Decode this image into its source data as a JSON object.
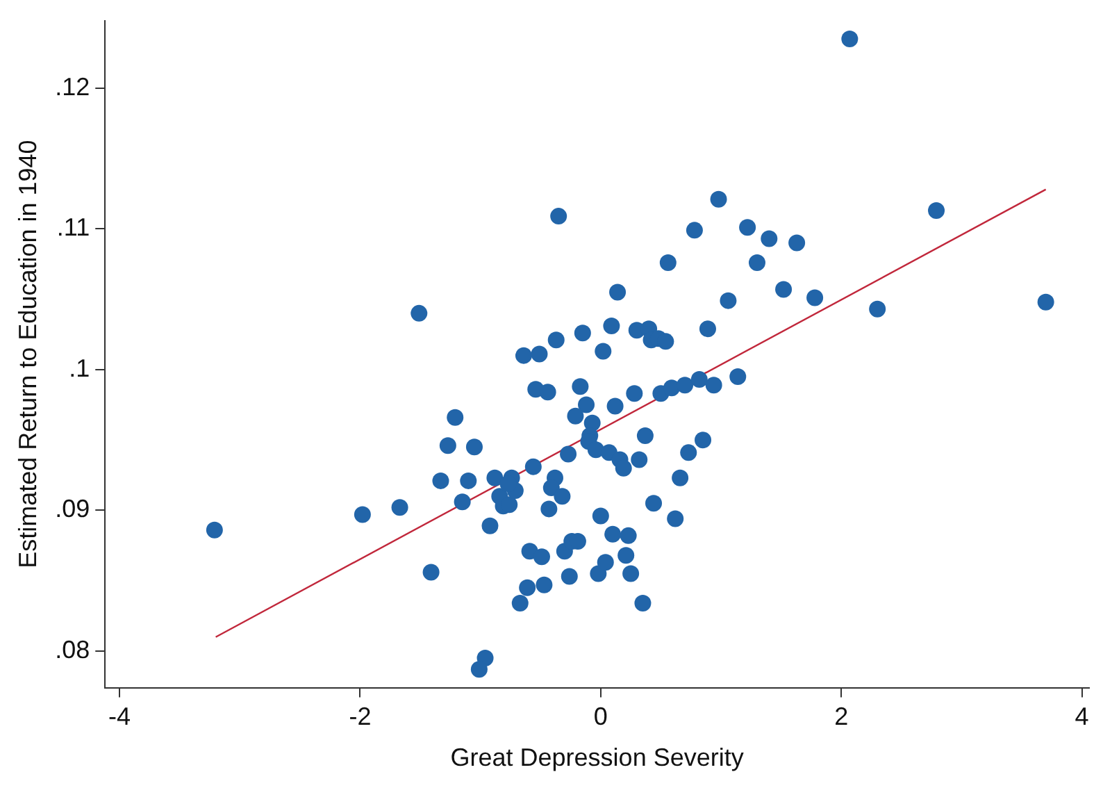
{
  "chart_data": {
    "type": "scatter",
    "xlabel": "Great Depression Severity",
    "ylabel": "Estimated Return to Education in 1940",
    "xlim": [
      -4.12,
      4.06
    ],
    "ylim": [
      0.0774,
      0.1248
    ],
    "xticks": [
      -4,
      -2,
      0,
      2,
      4
    ],
    "yticks": [
      {
        "value": 0.08,
        "label": ".08"
      },
      {
        "value": 0.09,
        "label": ".09"
      },
      {
        "value": 0.1,
        "label": ".1"
      },
      {
        "value": 0.11,
        "label": ".11"
      },
      {
        "value": 0.12,
        "label": ".12"
      }
    ],
    "grid": false,
    "legend": false,
    "marker": "circle",
    "series": [
      {
        "type": "scatter",
        "color": "#2265a9",
        "x": [
          -3.21,
          -1.98,
          -1.67,
          -1.51,
          -1.41,
          -1.33,
          -1.27,
          -1.21,
          -1.1,
          -1.15,
          -1.05,
          -0.96,
          -1.01,
          -0.92,
          -0.88,
          -0.84,
          -0.81,
          -0.76,
          -0.74,
          -0.71,
          -0.77,
          -0.67,
          -0.61,
          -0.59,
          -0.49,
          -0.47,
          -0.56,
          -0.54,
          -0.44,
          -0.64,
          -0.51,
          -0.37,
          -0.35,
          -0.15,
          -0.17,
          -0.12,
          -0.21,
          -0.27,
          -0.38,
          -0.41,
          -0.32,
          -0.43,
          -0.07,
          -0.09,
          -0.1,
          -0.04,
          0.0,
          -0.3,
          -0.24,
          -0.19,
          -0.26,
          -0.02,
          0.04,
          0.02,
          0.98,
          0.78,
          1.22,
          1.4,
          1.63,
          0.56,
          1.3,
          0.14,
          1.06,
          1.52,
          1.78,
          0.09,
          0.3,
          0.4,
          0.42,
          0.48,
          0.54,
          0.89,
          0.28,
          0.5,
          0.59,
          0.7,
          0.82,
          0.94,
          1.14,
          0.12,
          0.07,
          0.37,
          0.85,
          0.73,
          0.16,
          0.19,
          0.32,
          0.66,
          0.44,
          0.62,
          0.1,
          0.23,
          0.21,
          0.25,
          0.35,
          2.07,
          2.79,
          2.3,
          3.7
        ],
        "values": [
          0.0886,
          0.0897,
          0.0902,
          0.104,
          0.0856,
          0.0921,
          0.0946,
          0.0966,
          0.0921,
          0.0906,
          0.0945,
          0.0795,
          0.0787,
          0.0889,
          0.0923,
          0.091,
          0.0903,
          0.0904,
          0.0923,
          0.0914,
          0.0919,
          0.0834,
          0.0845,
          0.0871,
          0.0867,
          0.0847,
          0.0931,
          0.0986,
          0.0984,
          0.101,
          0.1011,
          0.1021,
          0.1109,
          0.1026,
          0.0988,
          0.0975,
          0.0967,
          0.094,
          0.0923,
          0.0916,
          0.091,
          0.0901,
          0.0962,
          0.0953,
          0.0949,
          0.0943,
          0.0896,
          0.0871,
          0.0878,
          0.0878,
          0.0853,
          0.0855,
          0.0863,
          0.1013,
          0.1121,
          0.1099,
          0.1101,
          0.1093,
          0.109,
          0.1076,
          0.1076,
          0.1055,
          0.1049,
          0.1057,
          0.1051,
          0.1031,
          0.1028,
          0.1029,
          0.1021,
          0.1022,
          0.102,
          0.1029,
          0.0983,
          0.0983,
          0.0987,
          0.0989,
          0.0993,
          0.0989,
          0.0995,
          0.0974,
          0.0941,
          0.0953,
          0.095,
          0.0941,
          0.0936,
          0.093,
          0.0936,
          0.0923,
          0.0905,
          0.0894,
          0.0883,
          0.0882,
          0.0868,
          0.0855,
          0.0834,
          0.1235,
          0.1113,
          0.1043,
          0.1048
        ]
      },
      {
        "type": "line",
        "color": "#c1273b",
        "marker": "none",
        "x": [
          -3.2,
          3.7
        ],
        "values": [
          0.081,
          0.1128
        ]
      }
    ]
  }
}
